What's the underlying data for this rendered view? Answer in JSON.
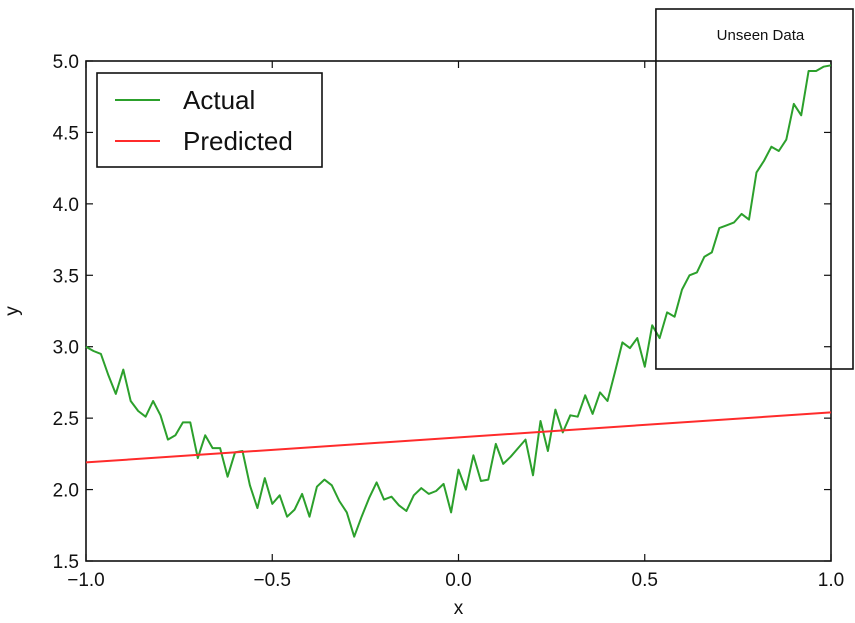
{
  "chart_data": {
    "type": "line",
    "title": "",
    "xlabel": "x",
    "ylabel": "y",
    "xlim": [
      -1.0,
      1.0
    ],
    "ylim": [
      1.5,
      5.0
    ],
    "grid": false,
    "legend_position": "top-left",
    "x_ticks": [
      "−1.0",
      "−0.5",
      "0.0",
      "0.5",
      "1.0"
    ],
    "y_ticks": [
      "1.5",
      "2.0",
      "2.5",
      "3.0",
      "3.5",
      "4.0",
      "4.5",
      "5.0"
    ],
    "annotation": {
      "text": "Unseen Data",
      "x_range": [
        0.53,
        1.0
      ]
    },
    "series": [
      {
        "name": "Actual",
        "color": "#2ca02c",
        "x": [
          -1.0,
          -0.98,
          -0.96,
          -0.94,
          -0.92,
          -0.9,
          -0.88,
          -0.86,
          -0.84,
          -0.82,
          -0.8,
          -0.78,
          -0.76,
          -0.74,
          -0.72,
          -0.7,
          -0.68,
          -0.66,
          -0.64,
          -0.62,
          -0.6,
          -0.58,
          -0.56,
          -0.54,
          -0.52,
          -0.5,
          -0.48,
          -0.46,
          -0.44,
          -0.42,
          -0.4,
          -0.38,
          -0.36,
          -0.34,
          -0.32,
          -0.3,
          -0.28,
          -0.26,
          -0.24,
          -0.22,
          -0.2,
          -0.18,
          -0.16,
          -0.14,
          -0.12,
          -0.1,
          -0.08,
          -0.06,
          -0.04,
          -0.02,
          0.0,
          0.02,
          0.04,
          0.06,
          0.08,
          0.1,
          0.12,
          0.14,
          0.16,
          0.18,
          0.2,
          0.22,
          0.24,
          0.26,
          0.28,
          0.3,
          0.32,
          0.34,
          0.36,
          0.38,
          0.4,
          0.42,
          0.44,
          0.46,
          0.48,
          0.5,
          0.52,
          0.54,
          0.56,
          0.58,
          0.6,
          0.62,
          0.64,
          0.66,
          0.68,
          0.7,
          0.72,
          0.74,
          0.76,
          0.78,
          0.8,
          0.82,
          0.84,
          0.86,
          0.88,
          0.9,
          0.92,
          0.94,
          0.96,
          0.98,
          1.0
        ],
        "y": [
          3.0,
          2.97,
          2.95,
          2.8,
          2.67,
          2.84,
          2.62,
          2.55,
          2.51,
          2.62,
          2.52,
          2.35,
          2.38,
          2.47,
          2.47,
          2.22,
          2.38,
          2.29,
          2.29,
          2.09,
          2.26,
          2.27,
          2.03,
          1.87,
          2.08,
          1.9,
          1.96,
          1.81,
          1.86,
          1.97,
          1.81,
          2.02,
          2.07,
          2.03,
          1.92,
          1.84,
          1.67,
          1.81,
          1.94,
          2.05,
          1.93,
          1.95,
          1.89,
          1.85,
          1.96,
          2.01,
          1.97,
          1.99,
          2.04,
          1.84,
          2.14,
          2.0,
          2.24,
          2.06,
          2.07,
          2.32,
          2.18,
          2.23,
          2.29,
          2.35,
          2.1,
          2.48,
          2.27,
          2.56,
          2.4,
          2.52,
          2.51,
          2.66,
          2.53,
          2.68,
          2.62,
          2.82,
          3.03,
          2.99,
          3.06,
          2.86,
          3.15,
          3.06,
          3.24,
          3.21,
          3.4,
          3.5,
          3.52,
          3.63,
          3.66,
          3.83,
          3.85,
          3.87,
          3.93,
          3.89,
          4.22,
          4.3,
          4.4,
          4.37,
          4.45,
          4.7,
          4.62,
          4.93,
          4.93,
          4.96,
          4.97
        ]
      },
      {
        "name": "Predicted",
        "color": "#ff2b2b",
        "x": [
          -1.0,
          1.0
        ],
        "y": [
          2.19,
          2.54
        ]
      }
    ]
  }
}
